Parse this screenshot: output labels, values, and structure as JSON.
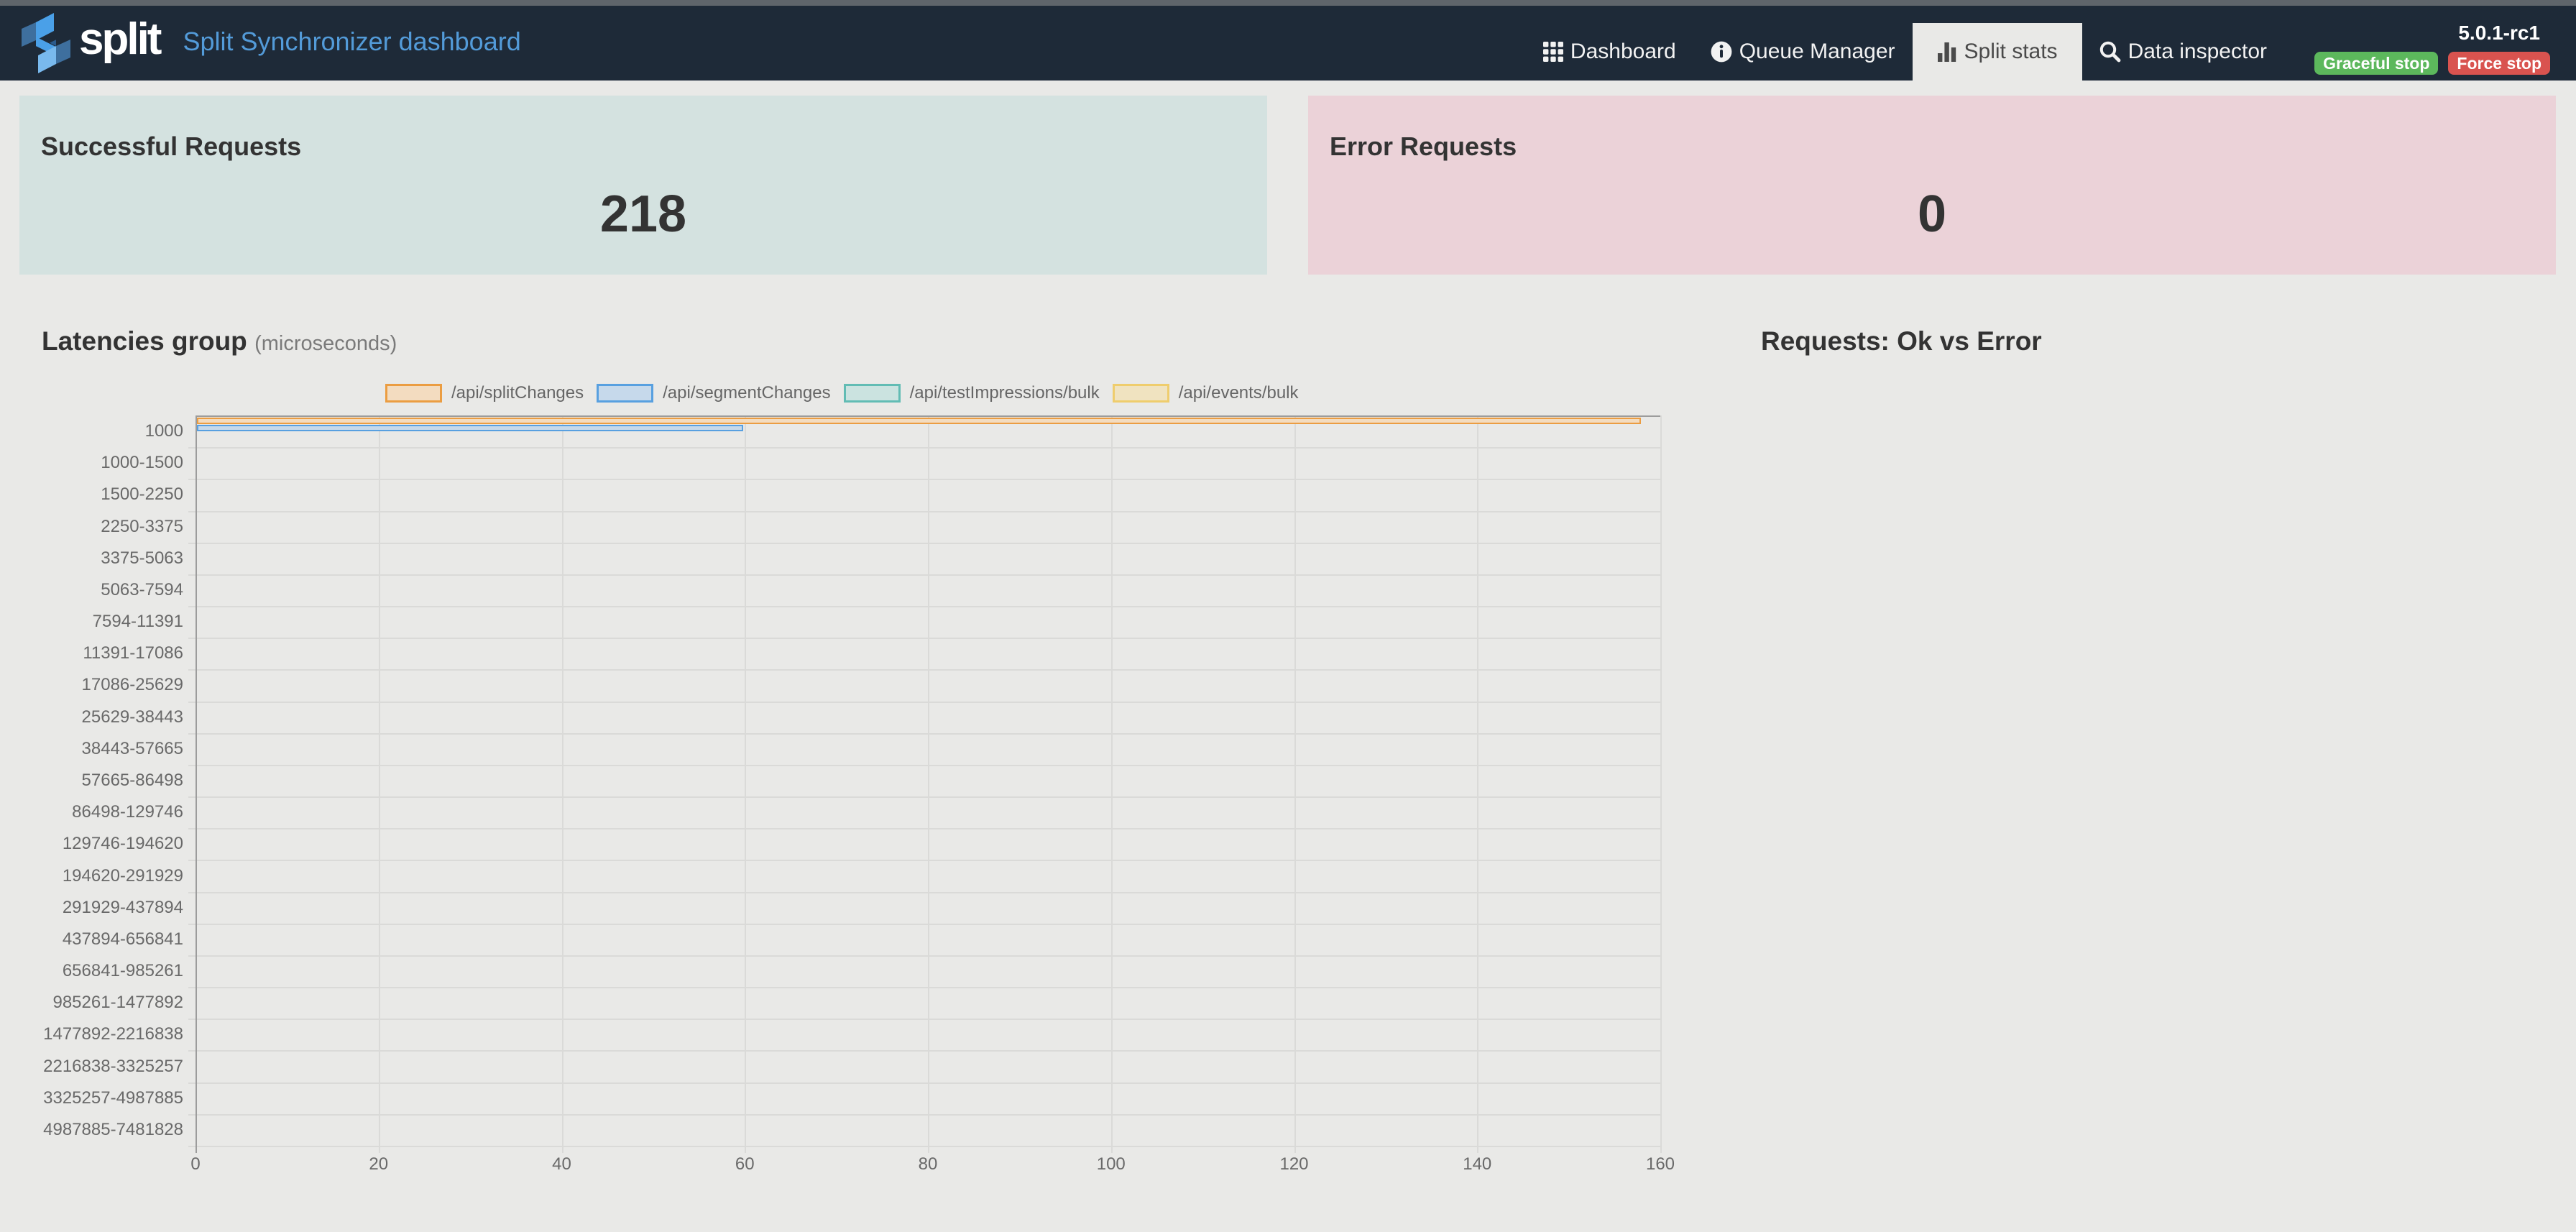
{
  "navbar": {
    "brand": "split",
    "title": "Split Synchronizer dashboard",
    "items": [
      {
        "label": "Dashboard",
        "icon": "grid",
        "active": false
      },
      {
        "label": "Queue Manager",
        "icon": "info",
        "active": false
      },
      {
        "label": "Split stats",
        "icon": "bar-chart",
        "active": true
      },
      {
        "label": "Data inspector",
        "icon": "search",
        "active": false
      }
    ],
    "version": "5.0.1-rc1",
    "buttons": [
      {
        "label": "Graceful stop",
        "color": "#5cb85c"
      },
      {
        "label": "Force stop",
        "color": "#d9534f"
      }
    ]
  },
  "cards": {
    "success": {
      "title": "Successful Requests",
      "value": "218",
      "bg": "#d4e2e0"
    },
    "error": {
      "title": "Error Requests",
      "value": "0",
      "bg": "#ebd2d8"
    }
  },
  "sections": {
    "latencies_title": "Latencies group",
    "latencies_unit": "(microseconds)",
    "requests_title": "Requests: Ok vs Error"
  },
  "chart_data": {
    "type": "bar",
    "orientation": "horizontal",
    "title": "Latencies group (microseconds)",
    "categories": [
      "1000",
      "1000-1500",
      "1500-2250",
      "2250-3375",
      "3375-5063",
      "5063-7594",
      "7594-11391",
      "11391-17086",
      "17086-25629",
      "25629-38443",
      "38443-57665",
      "57665-86498",
      "86498-129746",
      "129746-194620",
      "194620-291929",
      "291929-437894",
      "437894-656841",
      "656841-985261",
      "985261-1477892",
      "1477892-2216838",
      "2216838-3325257",
      "3325257-4987885",
      "4987885-7481828"
    ],
    "series": [
      {
        "name": "/api/splitChanges",
        "border": "#eb9d42",
        "fill": "#f3dcc0",
        "values": [
          158,
          0,
          0,
          0,
          0,
          0,
          0,
          0,
          0,
          0,
          0,
          0,
          0,
          0,
          0,
          0,
          0,
          0,
          0,
          0,
          0,
          0,
          0
        ]
      },
      {
        "name": "/api/segmentChanges",
        "border": "#58a0e0",
        "fill": "#c6d9eb",
        "values": [
          60,
          0,
          0,
          0,
          0,
          0,
          0,
          0,
          0,
          0,
          0,
          0,
          0,
          0,
          0,
          0,
          0,
          0,
          0,
          0,
          0,
          0,
          0
        ]
      },
      {
        "name": "/api/testImpressions/bulk",
        "border": "#62bcb4",
        "fill": "#cbe3e0",
        "values": [
          0,
          0,
          0,
          0,
          0,
          0,
          0,
          0,
          0,
          0,
          0,
          0,
          0,
          0,
          0,
          0,
          0,
          0,
          0,
          0,
          0,
          0,
          0
        ]
      },
      {
        "name": "/api/events/bulk",
        "border": "#efcd6d",
        "fill": "#f0e3c0",
        "values": [
          0,
          0,
          0,
          0,
          0,
          0,
          0,
          0,
          0,
          0,
          0,
          0,
          0,
          0,
          0,
          0,
          0,
          0,
          0,
          0,
          0,
          0,
          0
        ]
      }
    ],
    "x_ticks": [
      0,
      20,
      40,
      60,
      80,
      100,
      120,
      140,
      160
    ],
    "xlim": [
      0,
      160
    ],
    "legend_position": "top",
    "grid": true
  }
}
